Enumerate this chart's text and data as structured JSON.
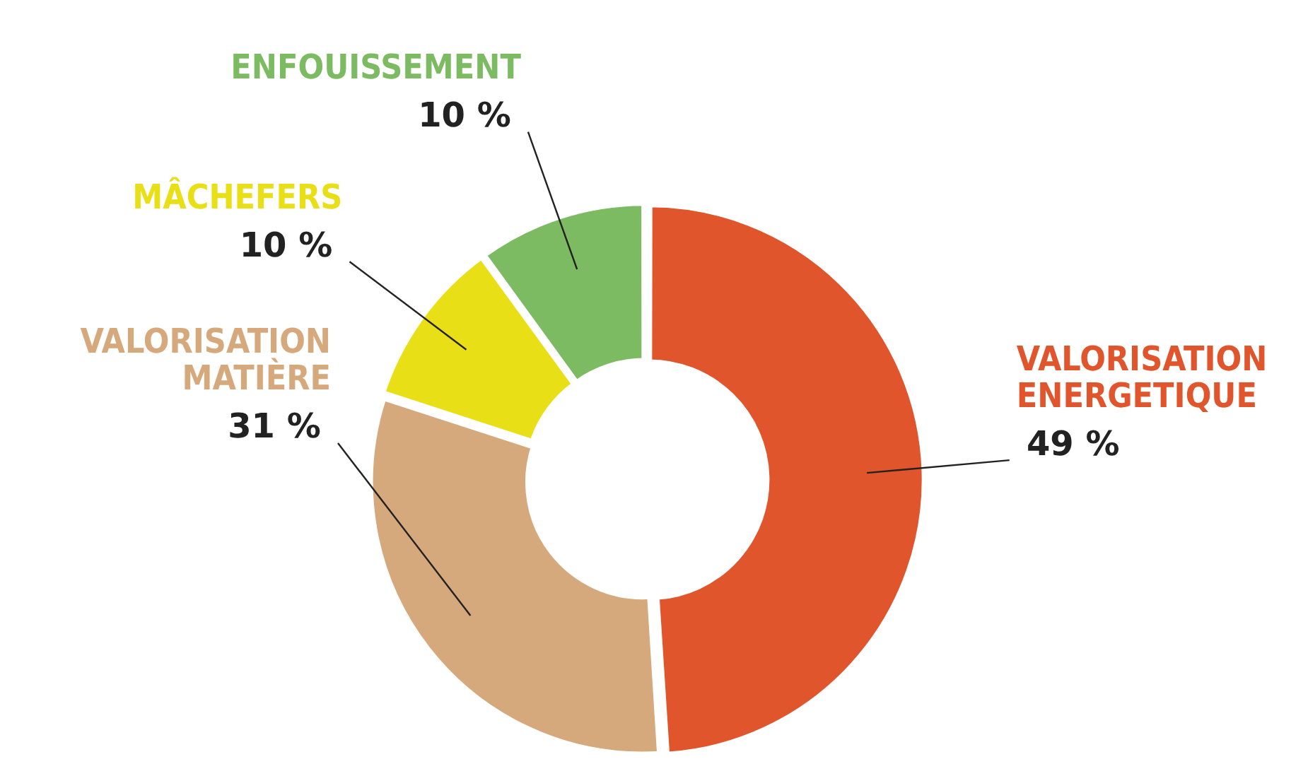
{
  "chart_data": {
    "type": "donut",
    "categories": [
      "VALORISATION ENERGETIQUE",
      "VALORISATION MATIÈRE",
      "MÂCHEFERS",
      "ENFOUISSEMENT"
    ],
    "values": [
      49,
      31,
      10,
      10
    ],
    "value_labels": [
      "49 %",
      "31 %",
      "10 %",
      "10 %"
    ],
    "colors": [
      "#e0552c",
      "#d6a97c",
      "#e8df16",
      "#7dbb62"
    ],
    "legend": false
  }
}
